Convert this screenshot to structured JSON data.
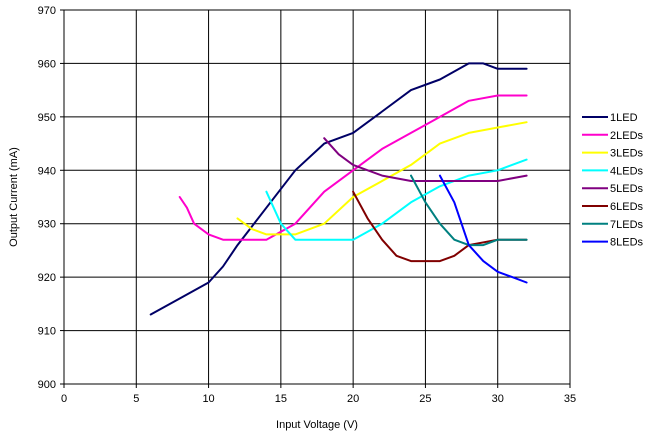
{
  "chart_data": {
    "type": "line",
    "title": "",
    "xlabel": "Input Voltage (V)",
    "ylabel": "Output Current (mA)",
    "xlim": [
      0,
      35
    ],
    "ylim": [
      900,
      970
    ],
    "xticks": [
      "0",
      "5",
      "10",
      "15",
      "20",
      "25",
      "30",
      "35"
    ],
    "yticks": [
      "900",
      "910",
      "920",
      "930",
      "940",
      "950",
      "960",
      "970"
    ],
    "grid": true,
    "legend_position": "right",
    "series": [
      {
        "name": "1LED",
        "color": "#000066",
        "x": [
          6,
          8,
          10,
          11,
          12,
          14,
          16,
          18,
          20,
          22,
          24,
          26,
          28,
          29,
          30,
          32
        ],
        "y": [
          913,
          916,
          919,
          922,
          926,
          933,
          940,
          945,
          947,
          951,
          955,
          957,
          960,
          960,
          959,
          959
        ]
      },
      {
        "name": "2LEDs",
        "color": "#ff00cc",
        "x": [
          8,
          8.5,
          9,
          10,
          11,
          12,
          13,
          14,
          16,
          18,
          20,
          22,
          24,
          26,
          28,
          30,
          32
        ],
        "y": [
          935,
          933,
          930,
          928,
          927,
          927,
          927,
          927,
          930,
          936,
          940,
          944,
          947,
          950,
          953,
          954,
          954
        ]
      },
      {
        "name": "3LEDs",
        "color": "#ffff00",
        "x": [
          12,
          13,
          14,
          15,
          16,
          18,
          20,
          22,
          24,
          26,
          28,
          30,
          32
        ],
        "y": [
          931,
          929,
          928,
          928,
          928,
          930,
          935,
          938,
          941,
          945,
          947,
          948,
          949
        ]
      },
      {
        "name": "4LEDs",
        "color": "#00ffff",
        "x": [
          14,
          15,
          16,
          17,
          18,
          19,
          20,
          22,
          24,
          26,
          28,
          30,
          32
        ],
        "y": [
          936,
          930,
          927,
          927,
          927,
          927,
          927,
          930,
          934,
          937,
          939,
          940,
          942
        ]
      },
      {
        "name": "5LEDs",
        "color": "#800080",
        "x": [
          18,
          19,
          20,
          22,
          24,
          26,
          28,
          30,
          32
        ],
        "y": [
          946,
          943,
          941,
          939,
          938,
          938,
          938,
          938,
          939
        ]
      },
      {
        "name": "6LEDs",
        "color": "#800000",
        "x": [
          20,
          21,
          22,
          23,
          24,
          25,
          26,
          27,
          28,
          30,
          32
        ],
        "y": [
          936,
          931,
          927,
          924,
          923,
          923,
          923,
          924,
          926,
          927,
          927
        ]
      },
      {
        "name": "7LEDs",
        "color": "#008080",
        "x": [
          24,
          25,
          26,
          27,
          28,
          29,
          30,
          32
        ],
        "y": [
          939,
          934,
          930,
          927,
          926,
          926,
          927,
          927
        ]
      },
      {
        "name": "8LEDs",
        "color": "#0000ff",
        "x": [
          26,
          27,
          28,
          29,
          30,
          31,
          32
        ],
        "y": [
          939,
          934,
          926,
          923,
          921,
          920,
          919
        ]
      }
    ]
  }
}
